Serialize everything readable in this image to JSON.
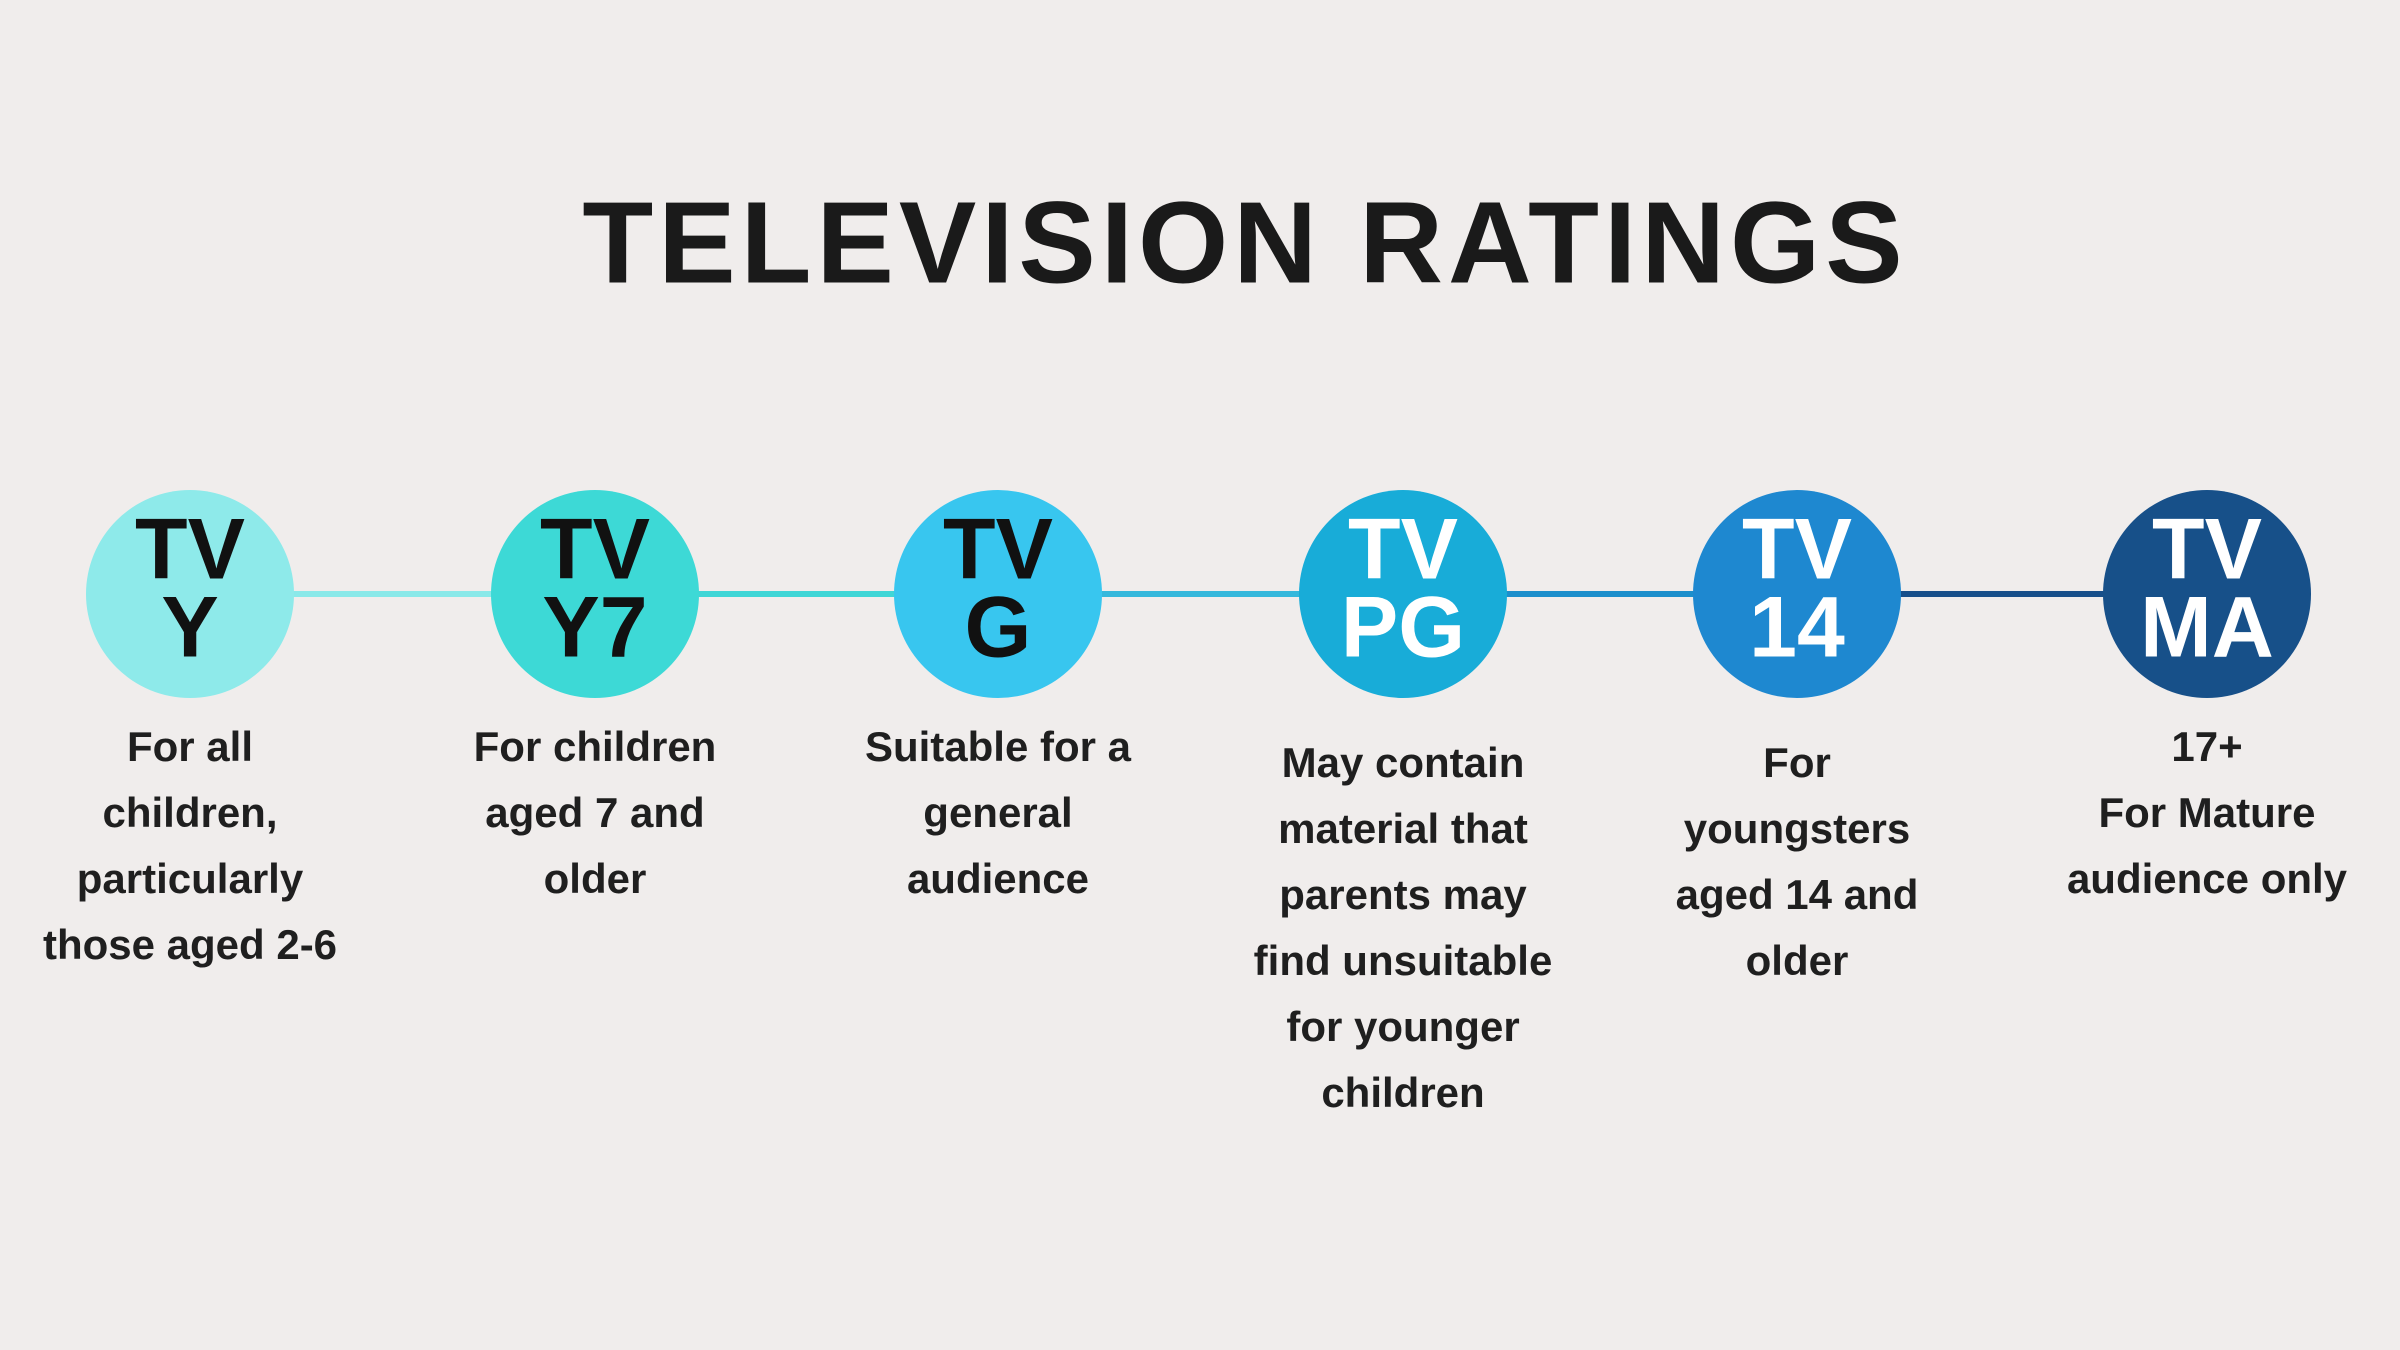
{
  "header": {
    "title": "TELEVISION RATINGS"
  },
  "ratings": [
    {
      "label_lines": [
        "TV",
        "Y"
      ],
      "description_lines": [
        "For all",
        "children,",
        "particularly",
        "those aged 2-6"
      ]
    },
    {
      "label_lines": [
        "TV",
        "Y7"
      ],
      "description_lines": [
        "For children",
        "aged 7 and",
        "older"
      ]
    },
    {
      "label_lines": [
        "TV",
        "G"
      ],
      "description_lines": [
        "Suitable for a",
        "general",
        "audience"
      ]
    },
    {
      "label_lines": [
        "TV",
        "PG"
      ],
      "description_lines": [
        "May contain",
        "material that",
        "parents may",
        "find unsuitable",
        "for younger",
        "children"
      ]
    },
    {
      "label_lines": [
        "TV",
        "14"
      ],
      "description_lines": [
        "For",
        "youngsters",
        "aged 14 and",
        "older"
      ]
    },
    {
      "label_lines": [
        "TV",
        "MA"
      ],
      "description_lines": [
        "17+",
        "For Mature",
        "audience only"
      ]
    }
  ]
}
